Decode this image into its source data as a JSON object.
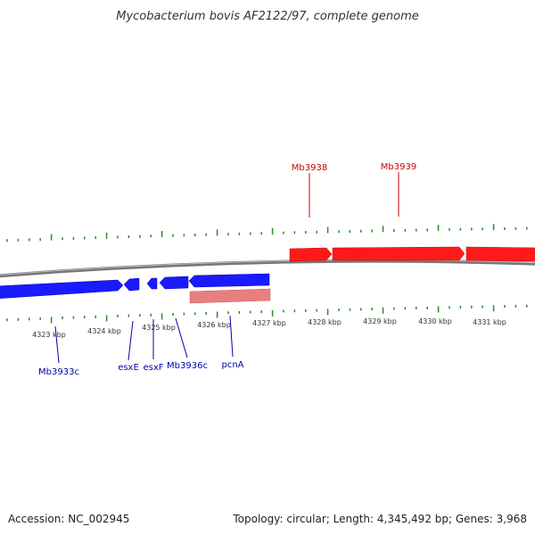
{
  "title": "Mycobacterium bovis AF2122/97, complete genome",
  "footer": {
    "accession": "Accession: NC_002945",
    "summary": "Topology: circular; Length: 4,345,492 bp; Genes: 3,968"
  },
  "colors": {
    "backbone": "#888888",
    "ticks": "#2a8a2a",
    "forward_gene": "#ff0000",
    "forward_label": "#cc0000",
    "reverse_gene": "#0000ee",
    "reverse_label": "#0000aa",
    "rna_feature": "#e88080"
  },
  "ticks": {
    "kbp_labels": [
      "4323 kbp",
      "4324 kbp",
      "4325 kbp",
      "4326 kbp",
      "4327 kbp",
      "4328 kbp",
      "4329 kbp",
      "4330 kbp",
      "4331 kbp"
    ]
  },
  "genes": {
    "forward": [
      {
        "label": "Mb3938"
      },
      {
        "label": "Mb3939"
      },
      {
        "label": ""
      }
    ],
    "reverse": [
      {
        "label": "Mb3933c"
      },
      {
        "label": "esxE"
      },
      {
        "label": "esxF"
      },
      {
        "label": "Mb3936c"
      },
      {
        "label": ""
      }
    ],
    "other": [
      {
        "label": "pcnA"
      }
    ]
  }
}
